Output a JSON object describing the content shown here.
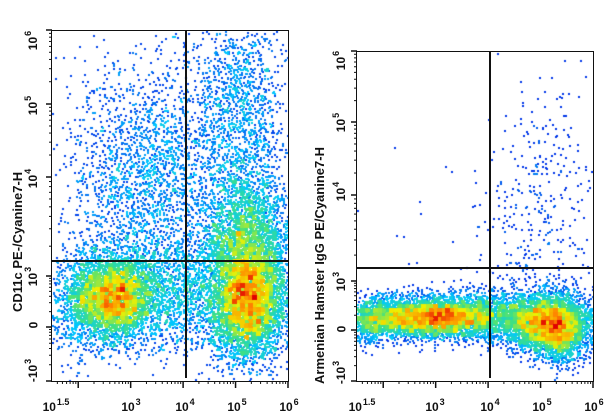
{
  "chart_data": [
    {
      "type": "scatter",
      "subtype": "flow-cytometry-density-dot-plot",
      "title": "",
      "xlabel": "",
      "ylabel": "CD11c PE-/Cyanine7-H",
      "x_scale": "log",
      "y_scale": "biexponential",
      "x_ticks": [
        {
          "base": "10",
          "exp": "1.5"
        },
        {
          "base": "10",
          "exp": "3"
        },
        {
          "base": "10",
          "exp": "4"
        },
        {
          "base": "10",
          "exp": "5"
        },
        {
          "base": "10",
          "exp": "6"
        }
      ],
      "y_ticks": [
        {
          "base": "-10",
          "exp": "3"
        },
        {
          "base": "0",
          "exp": ""
        },
        {
          "base": "10",
          "exp": "3"
        },
        {
          "base": "10",
          "exp": "4"
        },
        {
          "base": "10",
          "exp": "5"
        },
        {
          "base": "10",
          "exp": "6"
        }
      ],
      "xlim": [
        31.6,
        1000000
      ],
      "ylim": [
        -1000,
        1000000
      ],
      "gates": {
        "x_threshold": 12000,
        "y_threshold": 1300
      },
      "grid": false,
      "legend": "none",
      "colormap": [
        "#0000e0",
        "#00c8ff",
        "#40e080",
        "#f0f000",
        "#ff8000",
        "#e00000"
      ],
      "populations": [
        {
          "name": "double-negative cluster (bottom-left)",
          "x_center": 600,
          "y_center": 250,
          "density": "high"
        },
        {
          "name": "x-positive CD11c-low cluster (bottom-right)",
          "x_center": 130000,
          "y_center": 300,
          "density": "very high"
        },
        {
          "name": "CD11c-positive cluster (upper-right)",
          "x_center": 150000,
          "y_center": 2000,
          "density": "medium"
        },
        {
          "name": "CD11c-positive diffuse (upper-left)",
          "x_center": 1500,
          "y_center": 8000,
          "density": "low"
        },
        {
          "name": "CD11c-high tail (upper-right)",
          "x_center": 150000,
          "y_center": 200000,
          "density": "low"
        }
      ]
    },
    {
      "type": "scatter",
      "subtype": "flow-cytometry-density-dot-plot",
      "title": "",
      "xlabel": "",
      "ylabel": "Armenian Hamster IgG PE/Cyanine7-H",
      "x_scale": "log",
      "y_scale": "biexponential",
      "x_ticks": [
        {
          "base": "10",
          "exp": "1.5"
        },
        {
          "base": "10",
          "exp": "3"
        },
        {
          "base": "10",
          "exp": "4"
        },
        {
          "base": "10",
          "exp": "5"
        },
        {
          "base": "10",
          "exp": "6"
        }
      ],
      "y_ticks": [
        {
          "base": "-10",
          "exp": "3"
        },
        {
          "base": "0",
          "exp": ""
        },
        {
          "base": "10",
          "exp": "3"
        },
        {
          "base": "10",
          "exp": "4"
        },
        {
          "base": "10",
          "exp": "5"
        },
        {
          "base": "10",
          "exp": "6"
        }
      ],
      "xlim": [
        31.6,
        1000000
      ],
      "ylim": [
        -1000,
        1000000
      ],
      "gates": {
        "x_threshold": 12000,
        "y_threshold": 1300
      },
      "grid": false,
      "legend": "none",
      "colormap": [
        "#0000e0",
        "#00c8ff",
        "#40e080",
        "#f0f000",
        "#ff8000",
        "#e00000"
      ],
      "populations": [
        {
          "name": "isotype negative cluster (bottom-left)",
          "x_center": 600,
          "y_center": 150,
          "density": "high"
        },
        {
          "name": "isotype negative cluster (bottom-right)",
          "x_center": 110000,
          "y_center": 80,
          "density": "high"
        },
        {
          "name": "sparse background (upper-right)",
          "x_center": 120000,
          "y_center": 10000,
          "density": "very low"
        }
      ]
    }
  ],
  "panels": [
    {
      "ylabel": "CD11c PE-/Cyanine7-H",
      "x_ticks": [
        {
          "base": "10",
          "exp": "1.5"
        },
        {
          "base": "10",
          "exp": "3"
        },
        {
          "base": "10",
          "exp": "4"
        },
        {
          "base": "10",
          "exp": "5"
        },
        {
          "base": "10",
          "exp": "6"
        }
      ],
      "y_ticks": [
        {
          "base": "-10",
          "exp": "3"
        },
        {
          "base": "0",
          "exp": ""
        },
        {
          "base": "10",
          "exp": "3"
        },
        {
          "base": "10",
          "exp": "4"
        },
        {
          "base": "10",
          "exp": "5"
        },
        {
          "base": "10",
          "exp": "6"
        }
      ]
    },
    {
      "ylabel": "Armenian Hamster IgG PE/Cyanine7-H",
      "x_ticks": [
        {
          "base": "10",
          "exp": "1.5"
        },
        {
          "base": "10",
          "exp": "3"
        },
        {
          "base": "10",
          "exp": "4"
        },
        {
          "base": "10",
          "exp": "5"
        },
        {
          "base": "10",
          "exp": "6"
        }
      ],
      "y_ticks": [
        {
          "base": "-10",
          "exp": "3"
        },
        {
          "base": "0",
          "exp": ""
        },
        {
          "base": "10",
          "exp": "3"
        },
        {
          "base": "10",
          "exp": "4"
        },
        {
          "base": "10",
          "exp": "5"
        },
        {
          "base": "10",
          "exp": "6"
        }
      ]
    }
  ]
}
